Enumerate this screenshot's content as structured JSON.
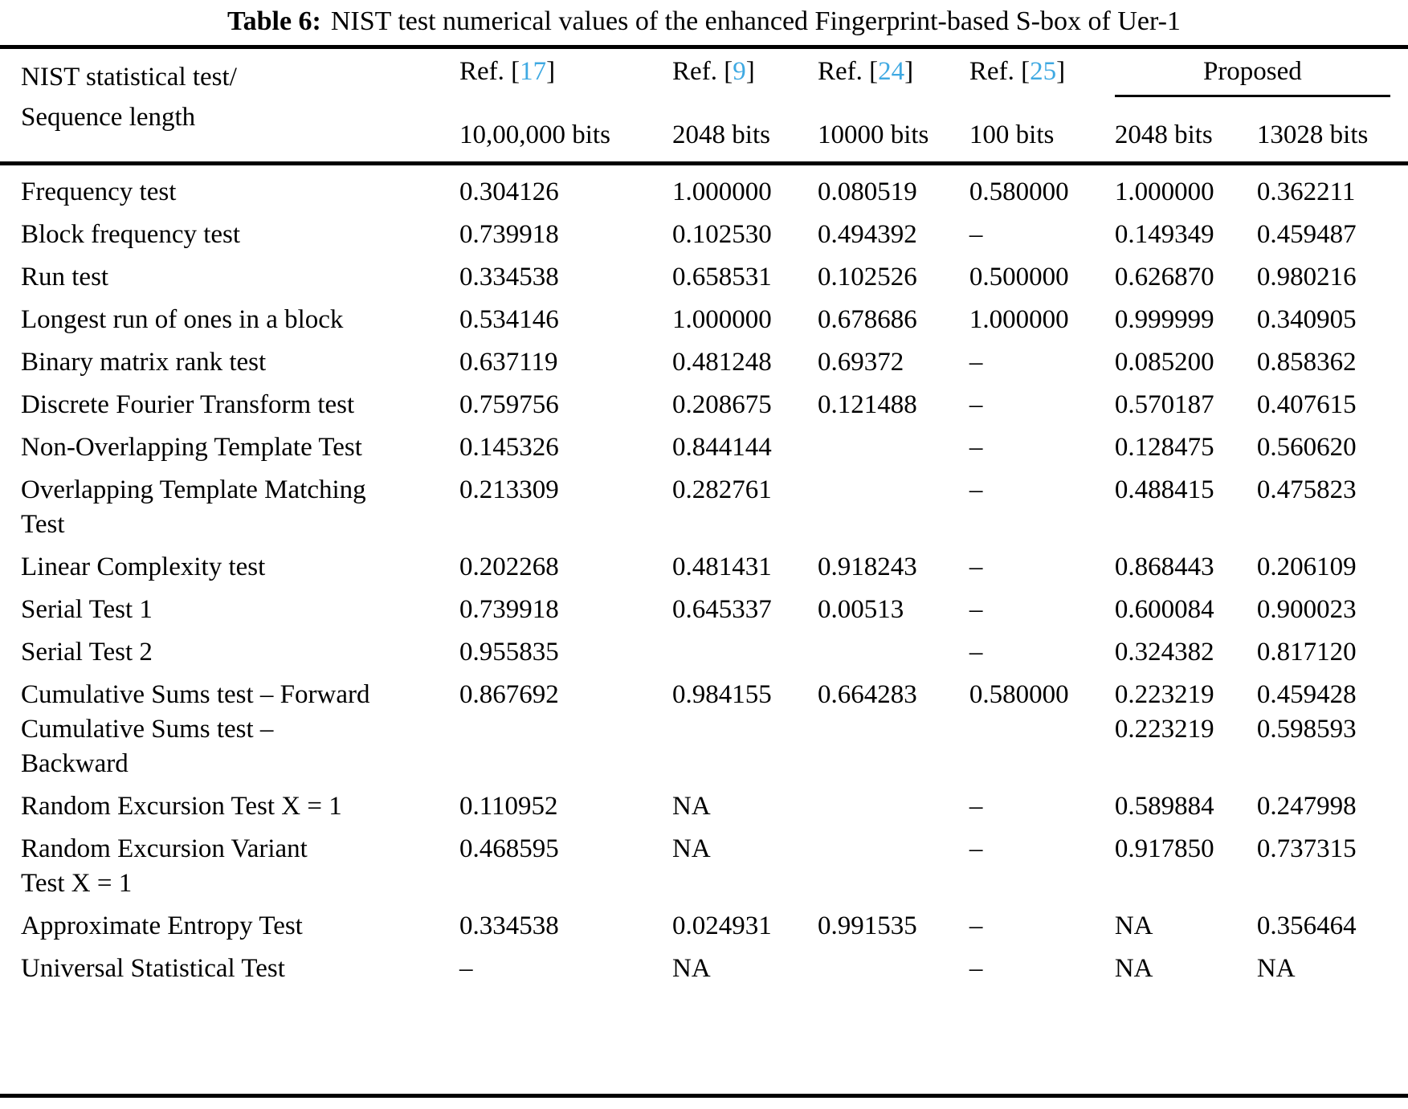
{
  "accent_color": "#3fa9e2",
  "caption": {
    "label": "Table 6:",
    "text": "NIST test numerical values of the enhanced Fingerprint-based S-box of Uer-1"
  },
  "header": {
    "col1_line1": "NIST statistical test/",
    "col1_line2": "Sequence length",
    "refs": [
      {
        "prefix": "Ref. [",
        "num": "17",
        "suffix": "]",
        "bits": "10,00,000 bits"
      },
      {
        "prefix": "Ref. [",
        "num": "9",
        "suffix": "]",
        "bits": "2048 bits"
      },
      {
        "prefix": "Ref. [",
        "num": "24",
        "suffix": "]",
        "bits": "10000 bits"
      },
      {
        "prefix": "Ref. [",
        "num": "25",
        "suffix": "]",
        "bits": "100 bits"
      }
    ],
    "proposed": {
      "label": "Proposed",
      "bits": [
        "2048 bits",
        "13028 bits"
      ]
    }
  },
  "table": {
    "rows": [
      {
        "name": "Frequency test",
        "values": [
          "0.304126",
          "1.000000",
          "0.080519",
          "0.580000",
          "1.000000",
          "0.362211"
        ]
      },
      {
        "name": "Block frequency test",
        "values": [
          "0.739918",
          "0.102530",
          "0.494392",
          "–",
          "0.149349",
          "0.459487"
        ]
      },
      {
        "name": "Run test",
        "values": [
          "0.334538",
          "0.658531",
          "0.102526",
          "0.500000",
          "0.626870",
          "0.980216"
        ]
      },
      {
        "name": "Longest run of ones in a block",
        "values": [
          "0.534146",
          "1.000000",
          "0.678686",
          "1.000000",
          "0.999999",
          "0.340905"
        ]
      },
      {
        "name": "Binary matrix rank test",
        "values": [
          "0.637119",
          "0.481248",
          "0.69372",
          "–",
          "0.085200",
          "0.858362"
        ]
      },
      {
        "name": "Discrete Fourier Transform test",
        "values": [
          "0.759756",
          "0.208675",
          "0.121488",
          "–",
          "0.570187",
          "0.407615"
        ]
      },
      {
        "name": "Non-Overlapping Template Test",
        "values": [
          "0.145326",
          "0.844144",
          "",
          "–",
          "0.128475",
          "0.560620"
        ]
      },
      {
        "name": "Overlapping Template Matching\nTest",
        "values": [
          "0.213309",
          "0.282761",
          "",
          "–",
          "0.488415",
          "0.475823"
        ]
      },
      {
        "name": "Linear Complexity test",
        "values": [
          "0.202268",
          "0.481431",
          "0.918243",
          "–",
          "0.868443",
          "0.206109"
        ]
      },
      {
        "name": "Serial Test 1",
        "values": [
          "0.739918",
          "0.645337",
          "0.00513",
          "–",
          "0.600084",
          "0.900023"
        ]
      },
      {
        "name": "Serial Test 2",
        "values": [
          "0.955835",
          "",
          "",
          "–",
          "0.324382",
          "0.817120"
        ]
      },
      {
        "name": "Cumulative Sums test – Forward\nCumulative Sums test –\nBackward",
        "values": [
          "0.867692",
          "0.984155",
          "0.664283",
          "0.580000",
          "0.223219\n0.223219",
          "0.459428\n0.598593"
        ]
      },
      {
        "name": "Random Excursion Test X = 1",
        "values": [
          "0.110952",
          "NA",
          "",
          "–",
          "0.589884",
          "0.247998"
        ]
      },
      {
        "name": "Random Excursion Variant\nTest X = 1",
        "values": [
          "0.468595",
          "NA",
          "",
          "–",
          "0.917850",
          "0.737315"
        ]
      },
      {
        "name": "Approximate Entropy Test",
        "values": [
          "0.334538",
          "0.024931",
          "0.991535",
          "–",
          "NA",
          "0.356464"
        ]
      },
      {
        "name": "Universal Statistical Test",
        "values": [
          "–",
          "NA",
          "",
          "–",
          "NA",
          "NA"
        ]
      }
    ]
  }
}
